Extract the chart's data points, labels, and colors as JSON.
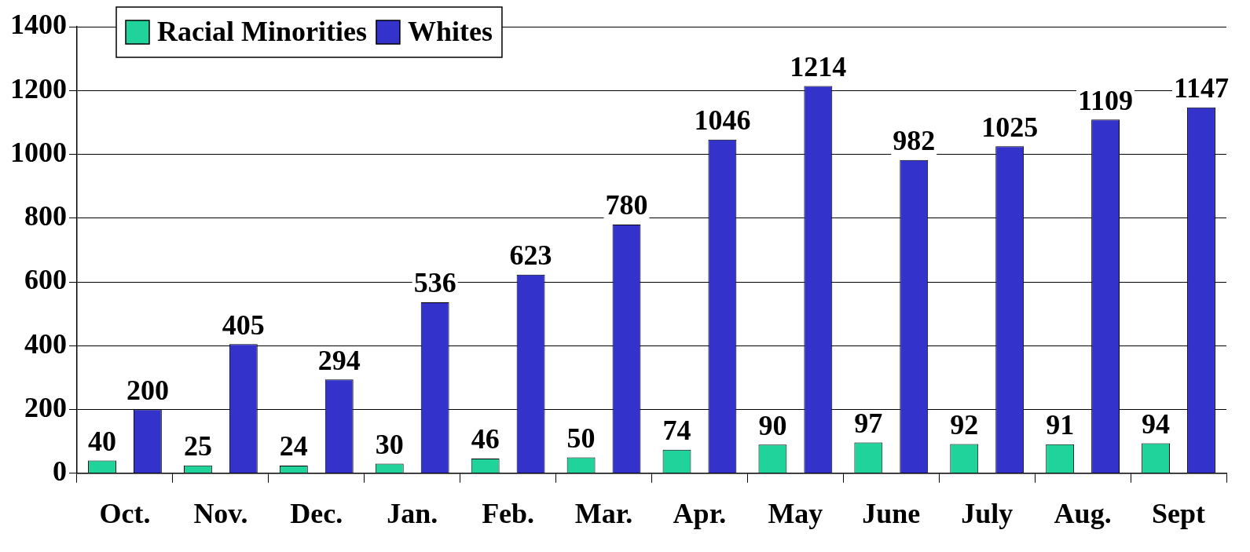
{
  "chart_data": {
    "type": "bar",
    "categories": [
      "Oct.",
      "Nov.",
      "Dec.",
      "Jan.",
      "Feb.",
      "Mar.",
      "Apr.",
      "May",
      "June",
      "July",
      "Aug.",
      "Sept"
    ],
    "series": [
      {
        "name": "Racial Minorities",
        "color": "#1fd39b",
        "values": [
          40,
          25,
          24,
          30,
          46,
          50,
          74,
          90,
          97,
          92,
          91,
          94
        ]
      },
      {
        "name": "Whites",
        "color": "#3333cc",
        "values": [
          200,
          405,
          294,
          536,
          623,
          780,
          1046,
          1214,
          982,
          1025,
          1109,
          1147
        ]
      }
    ],
    "ylim": [
      0,
      1400
    ],
    "yticks": [
      0,
      200,
      400,
      600,
      800,
      1000,
      1200,
      1400
    ],
    "grid": "y",
    "legend": "top left",
    "data_labels": true
  }
}
